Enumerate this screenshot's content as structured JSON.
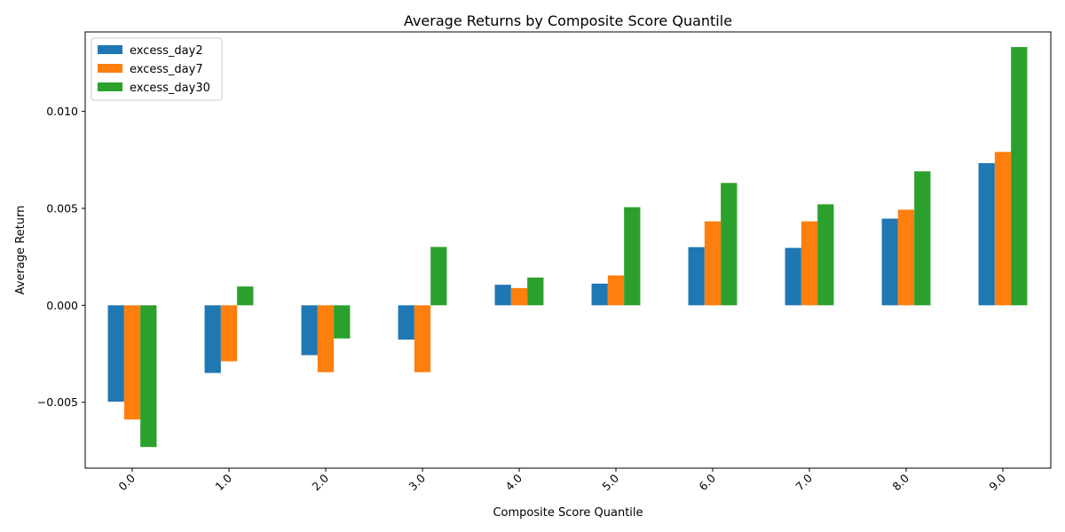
{
  "chart_data": {
    "type": "bar",
    "title": "Average Returns by Composite Score Quantile",
    "xlabel": "Composite Score Quantile",
    "ylabel": "Average Return",
    "categories": [
      "0.0",
      "1.0",
      "2.0",
      "3.0",
      "4.0",
      "5.0",
      "6.0",
      "7.0",
      "8.0",
      "9.0"
    ],
    "series": [
      {
        "name": "excess_day2",
        "color": "#1f77b4",
        "values": [
          -0.00497,
          -0.00349,
          -0.00257,
          -0.00177,
          0.00106,
          0.00112,
          0.003,
          0.00296,
          0.00447,
          0.00733
        ]
      },
      {
        "name": "excess_day7",
        "color": "#ff7f0e",
        "values": [
          -0.00589,
          -0.00289,
          -0.00345,
          -0.00345,
          0.00089,
          0.00154,
          0.00433,
          0.00433,
          0.00493,
          0.00791
        ]
      },
      {
        "name": "excess_day30",
        "color": "#2ca02c",
        "values": [
          -0.00731,
          0.00097,
          -0.00171,
          0.00301,
          0.00143,
          0.00506,
          0.00631,
          0.00521,
          0.00691,
          0.01332
        ]
      }
    ],
    "ylim": [
      -0.0084,
      0.0141
    ],
    "yticks": [
      -0.005,
      0.0,
      0.005,
      0.01
    ],
    "ytick_labels": [
      "−0.005",
      "0.000",
      "0.005",
      "0.010"
    ],
    "legend_position": "top-left",
    "grid": false,
    "xtick_rotation": 45
  }
}
